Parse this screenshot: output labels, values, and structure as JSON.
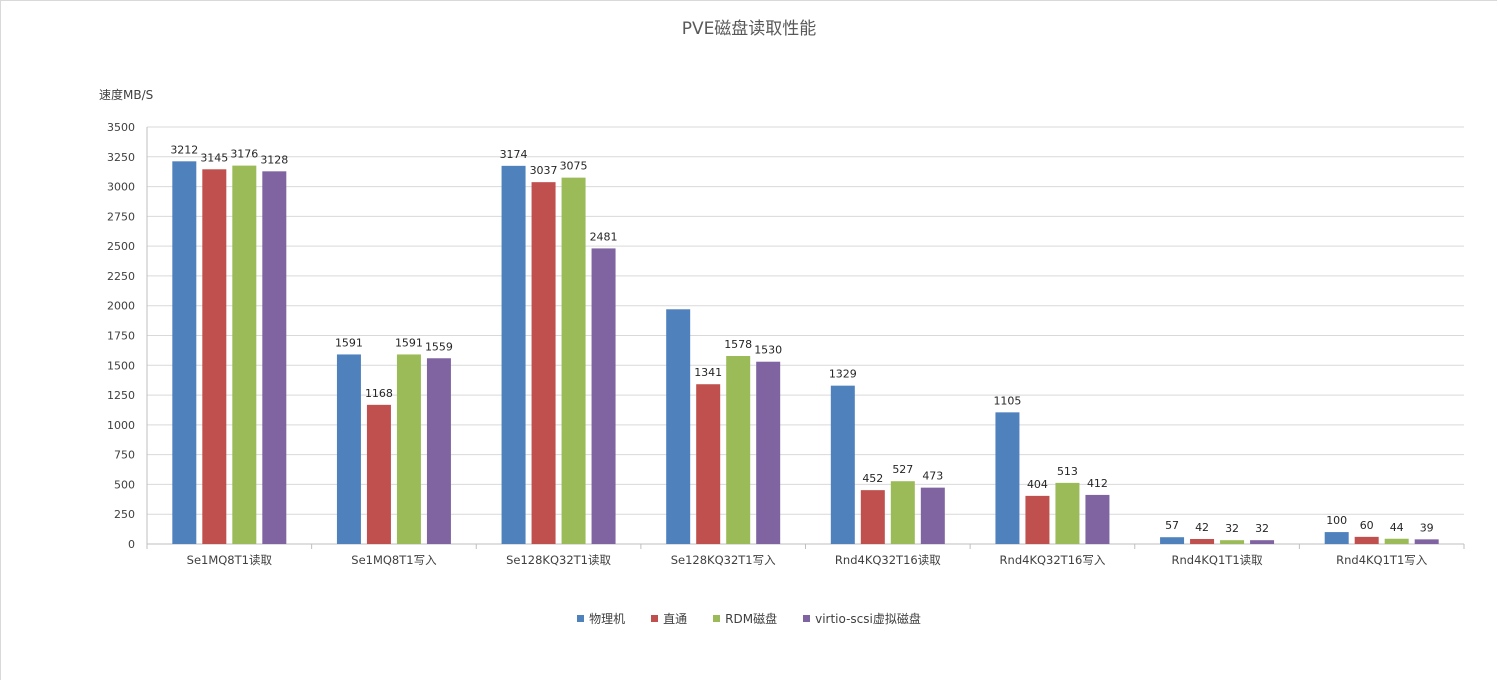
{
  "chart_data": {
    "type": "bar",
    "title": "PVE磁盘读取性能",
    "ylabel": "速度MB/S",
    "xlabel": "",
    "ylim": [
      0,
      3500
    ],
    "yticks": [
      0,
      250,
      500,
      750,
      1000,
      1250,
      1500,
      1750,
      2000,
      2250,
      2500,
      2750,
      3000,
      3250,
      3500
    ],
    "grid": true,
    "legend_position": "bottom",
    "categories": [
      "Se1MQ8T1读取",
      "Se1MQ8T1写入",
      "Se128KQ32T1读取",
      "Se128KQ32T1写入",
      "Rnd4KQ32T16读取",
      "Rnd4KQ32T16写入",
      "Rnd4KQ1T1读取",
      "Rnd4KQ1T1写入"
    ],
    "series": [
      {
        "name": "物理机",
        "color": "#4f81bd",
        "values": [
          3212,
          1591,
          3174,
          1970,
          1329,
          1105,
          57,
          100
        ],
        "labels": [
          "3212",
          "1591",
          "3174",
          "",
          "1329",
          "1105",
          "57",
          "100"
        ]
      },
      {
        "name": "直通",
        "color": "#c0504d",
        "values": [
          3145,
          1168,
          3037,
          1341,
          452,
          404,
          42,
          60
        ],
        "labels": [
          "3145",
          "1168",
          "3037",
          "1341",
          "452",
          "404",
          "42",
          "60"
        ]
      },
      {
        "name": "RDM磁盘",
        "color": "#9bbb59",
        "values": [
          3176,
          1591,
          3075,
          1578,
          527,
          513,
          32,
          44
        ],
        "labels": [
          "3176",
          "1591",
          "3075",
          "1578",
          "527",
          "513",
          "32",
          "44"
        ]
      },
      {
        "name": "virtio-scsi虚拟磁盘",
        "color": "#8064a2",
        "values": [
          3128,
          1559,
          2481,
          1530,
          473,
          412,
          32,
          39
        ],
        "labels": [
          "3128",
          "1559",
          "2481",
          "1530",
          "473",
          "412",
          "32",
          "39"
        ]
      }
    ]
  }
}
